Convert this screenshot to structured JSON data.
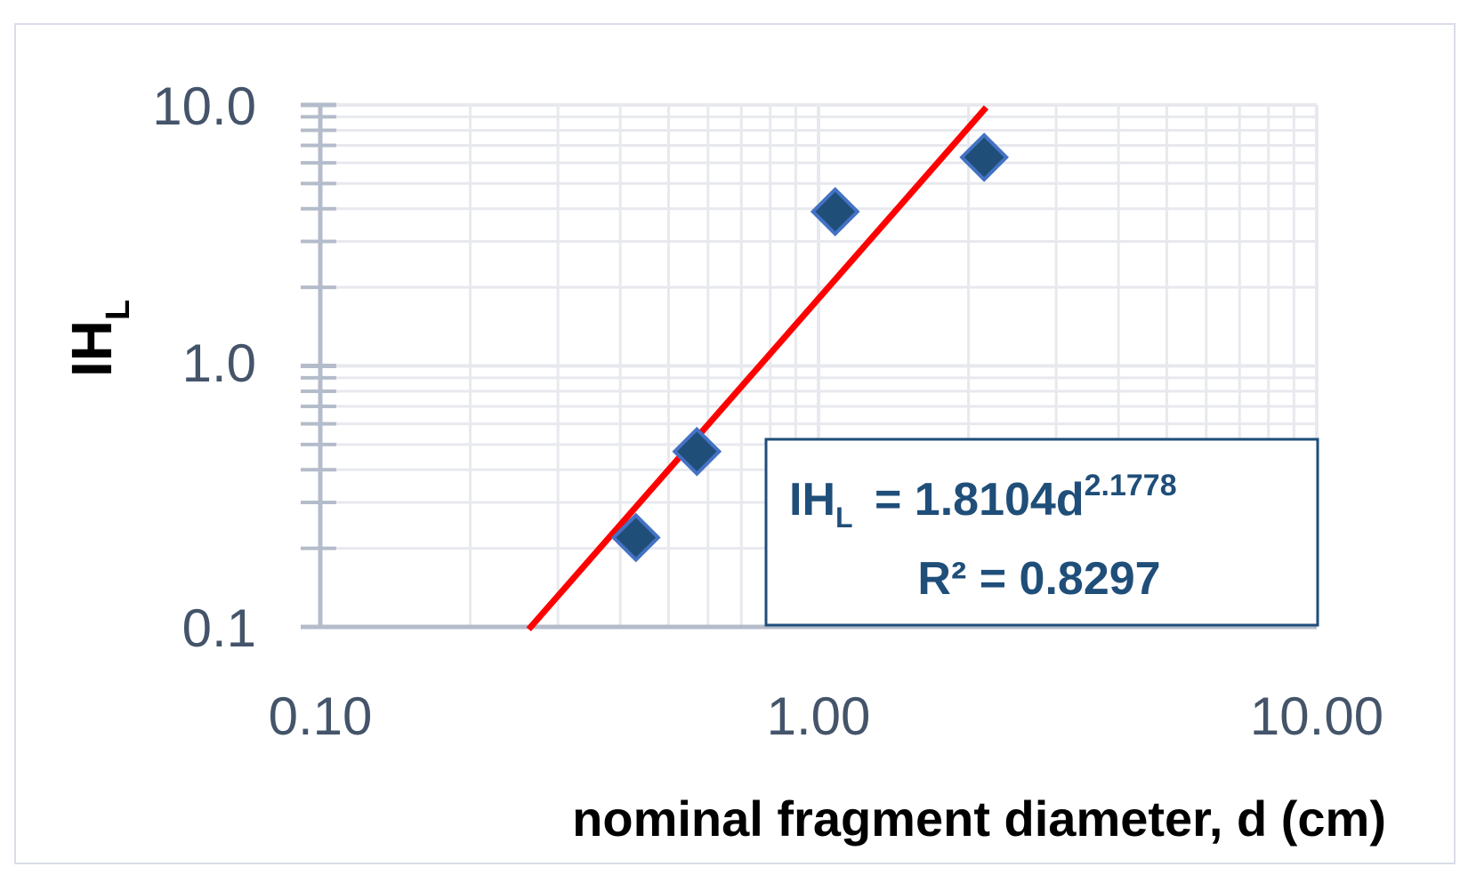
{
  "chart_data": {
    "type": "scatter",
    "title": "",
    "xlabel": "nominal fragment diameter, d (cm)",
    "ylabel": {
      "main": "IH",
      "sub": "L"
    },
    "x_scale": "log",
    "y_scale": "log",
    "xlim": [
      0.1,
      10
    ],
    "ylim": [
      0.1,
      10
    ],
    "x_ticks": [
      "0.10",
      "1.00",
      "10.00"
    ],
    "y_ticks": [
      "0.1",
      "1.0",
      "10.0"
    ],
    "grid": true,
    "series": [
      {
        "points": [
          {
            "x": 0.43,
            "y": 0.22
          },
          {
            "x": 0.57,
            "y": 0.47
          },
          {
            "x": 1.08,
            "y": 3.9
          },
          {
            "x": 2.15,
            "y": 6.3
          }
        ]
      }
    ],
    "trendline": {
      "type": "power",
      "coefficient": 1.8104,
      "exponent": 2.1778,
      "r_squared": 0.8297,
      "x_range": [
        0.262,
        2.17
      ]
    },
    "annotation": {
      "equation_lhs_main": "IH",
      "equation_lhs_sub": "L",
      "equation_rhs": " = 1.8104d",
      "equation_exponent": "2.1778",
      "r2_text": "R² = 0.8297"
    },
    "colors": {
      "marker_fill": "#1f4e79",
      "marker_stroke": "#4472c4",
      "trendline": "#ff0000",
      "tick_text": "#44546a",
      "gridline": "#e7e9ee",
      "axis": "#b4bccb",
      "equation_text": "#1f4e79",
      "equation_box": "#1f4e79"
    }
  }
}
